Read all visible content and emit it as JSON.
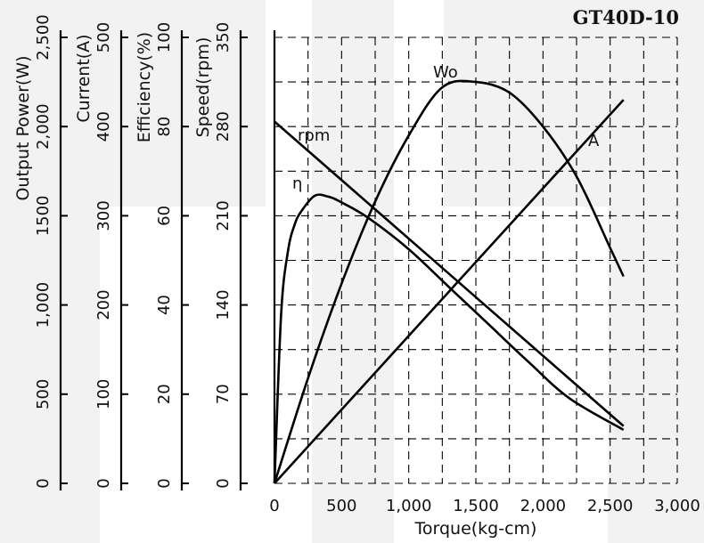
{
  "chart_data": {
    "type": "line",
    "title": "GT40D-10",
    "xlabel": "Torque(kg-cm)",
    "x_ticks": [
      "0",
      "500",
      "1,000",
      "1,500",
      "2,000",
      "2,500",
      "3,000"
    ],
    "xlim": [
      0,
      3000
    ],
    "y_axes": [
      {
        "key": "power",
        "label": "Output Power(W)",
        "ticks": [
          "0",
          "500",
          "1,000",
          "1500",
          "2,000",
          "2,500"
        ],
        "lim": [
          0,
          2500
        ]
      },
      {
        "key": "current",
        "label": "Current(A)",
        "ticks": [
          "0",
          "100",
          "200",
          "300",
          "400",
          "500"
        ],
        "lim": [
          0,
          500
        ]
      },
      {
        "key": "efficiency",
        "label": "Efficiency(%)",
        "ticks": [
          "0",
          "20",
          "40",
          "60",
          "80",
          "100"
        ],
        "lim": [
          0,
          100
        ]
      },
      {
        "key": "speed",
        "label": "Speed(rpm)",
        "ticks": [
          "0",
          "70",
          "140",
          "210",
          "280",
          "350"
        ],
        "lim": [
          0,
          350
        ]
      }
    ],
    "series": [
      {
        "name": "rpm",
        "axis": "speed",
        "x": [
          0,
          2600
        ],
        "y": [
          284,
          45
        ]
      },
      {
        "name": "A",
        "axis": "current",
        "x": [
          0,
          2600
        ],
        "y": [
          0,
          430
        ]
      },
      {
        "name": "η",
        "axis": "efficiency",
        "x": [
          0,
          50,
          100,
          150,
          200,
          300,
          400,
          500,
          700,
          1000,
          1300,
          1600,
          1900,
          2200,
          2600
        ],
        "y": [
          0,
          38,
          52,
          58,
          61,
          64.5,
          64.3,
          63,
          59.5,
          52.5,
          44,
          35.5,
          27,
          19,
          12
        ]
      },
      {
        "name": "Wo",
        "axis": "power",
        "x": [
          0,
          250,
          500,
          750,
          1000,
          1250,
          1500,
          1750,
          2000,
          2250,
          2500,
          2600
        ],
        "y": [
          0,
          590,
          1120,
          1580,
          1950,
          2220,
          2250,
          2190,
          2000,
          1720,
          1320,
          1160
        ]
      }
    ],
    "grid": true,
    "series_labels": {
      "rpm": "rpm",
      "A": "A",
      "eta": "η",
      "Wo": "Wo"
    }
  }
}
